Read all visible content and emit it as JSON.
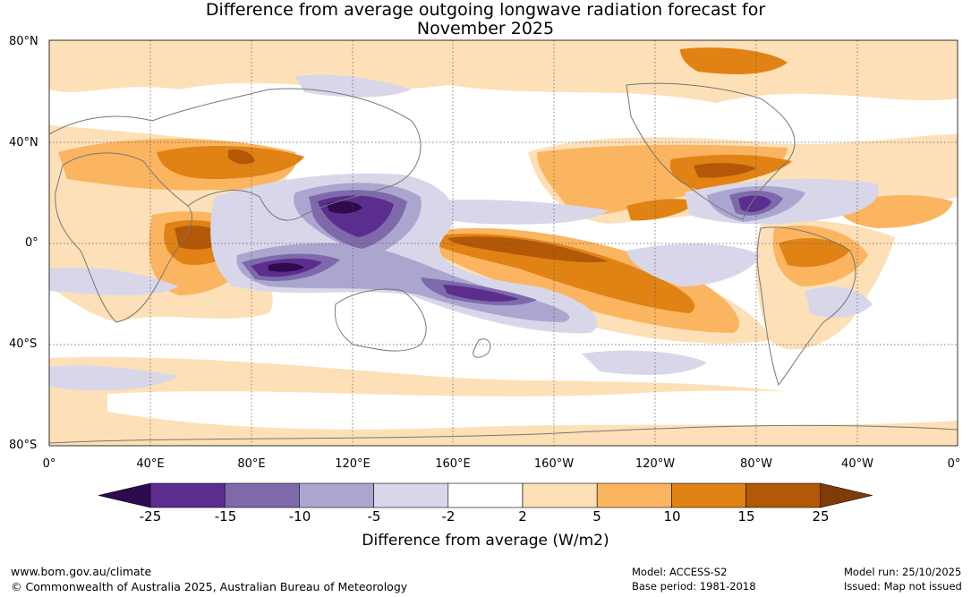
{
  "title": {
    "line1": "Difference from average outgoing longwave radiation forecast for",
    "line2": "November 2025"
  },
  "map": {
    "lat_labels": [
      "80°N",
      "40°N",
      "0°",
      "40°S",
      "80°S"
    ],
    "lon_labels": [
      "0°",
      "40°E",
      "80°E",
      "120°E",
      "160°E",
      "160°W",
      "120°W",
      "80°W",
      "40°W",
      "0°"
    ],
    "anomaly_regions": [
      {
        "name": "south-pacific-convergence-zone",
        "level": "wet_strong"
      },
      {
        "name": "maritime-continent",
        "level": "wet_extreme"
      },
      {
        "name": "equatorial-central-pacific",
        "level": "dry_strong"
      },
      {
        "name": "central-asia",
        "level": "dry_moderate"
      },
      {
        "name": "north-america",
        "level": "dry_moderate"
      },
      {
        "name": "eastern-africa-indian-ocean",
        "level": "dry_strong"
      },
      {
        "name": "caribbean",
        "level": "wet_strong"
      }
    ]
  },
  "colorbar": {
    "title": "Difference from average (W/m2)",
    "tick_labels": [
      "-25",
      "-15",
      "-10",
      "-5",
      "-2",
      "2",
      "5",
      "10",
      "15",
      "25"
    ],
    "colors": [
      "#2e0a4f",
      "#5b2d8e",
      "#7e6aab",
      "#aba6cf",
      "#d8d7ea",
      "#ffffff",
      "#fde0b7",
      "#fbb560",
      "#e08214",
      "#b35806",
      "#7f3b08"
    ]
  },
  "footer": {
    "url": "www.bom.gov.au/climate",
    "copyright": "© Commonwealth of Australia 2025, Australian Bureau of Meteorology",
    "model": "Model: ACCESS-S2",
    "base_period": "Base period: 1981-2018",
    "model_run": "Model run: 25/10/2025",
    "issued": "Issued: Map not issued"
  }
}
